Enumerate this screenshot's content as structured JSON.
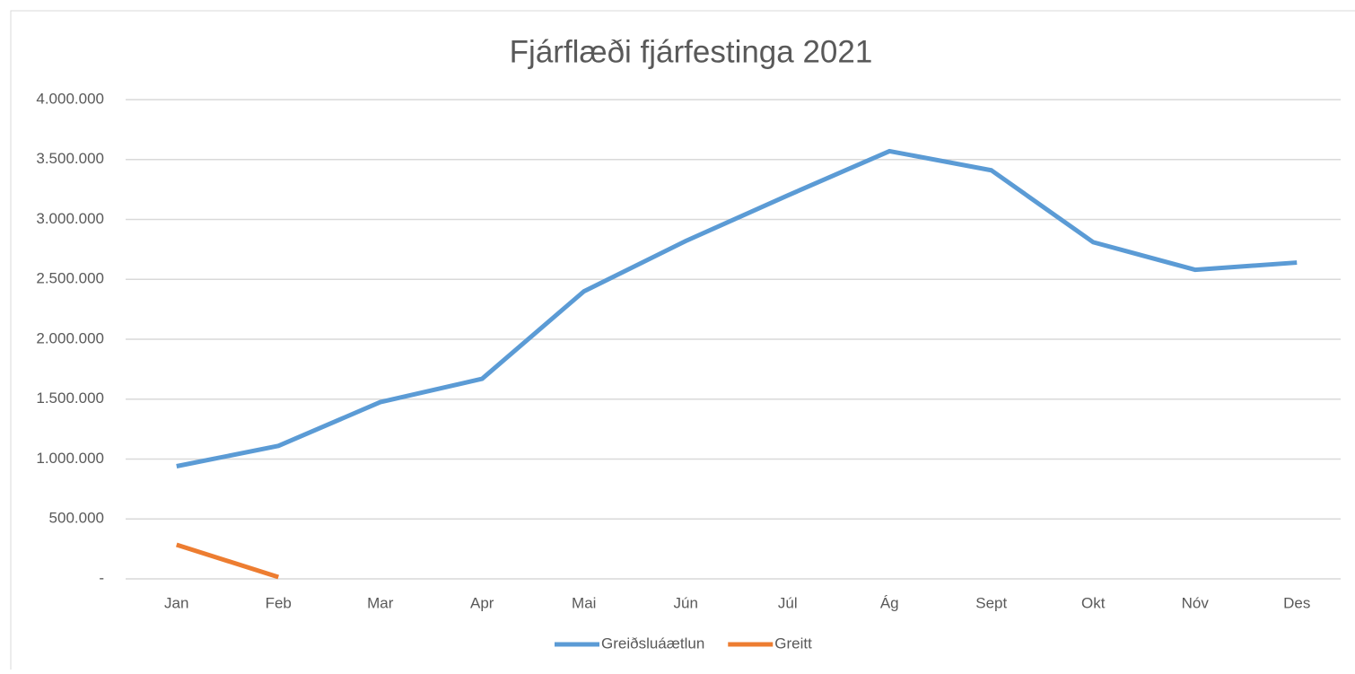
{
  "chart_data": {
    "type": "line",
    "title": "Fjárflæði fjárfestinga 2021",
    "categories": [
      "Jan",
      "Feb",
      "Mar",
      "Apr",
      "Mai",
      "Jún",
      "Júl",
      "Ág",
      "Sept",
      "Okt",
      "Nóv",
      "Des"
    ],
    "series": [
      {
        "name": "Greiðsluáætlun",
        "color": "#5b9bd5",
        "values": [
          940000,
          1110000,
          1475000,
          1670000,
          2400000,
          2820000,
          3200000,
          3570000,
          3410000,
          2810000,
          2580000,
          2640000
        ]
      },
      {
        "name": "Greitt",
        "color": "#ed7d31",
        "values": [
          285000,
          15000,
          null,
          null,
          null,
          null,
          null,
          null,
          null,
          null,
          null,
          null
        ]
      }
    ],
    "ylim": [
      0,
      4000000
    ],
    "yticks": [
      {
        "value": 0,
        "label": "-"
      },
      {
        "value": 500000,
        "label": "500.000"
      },
      {
        "value": 1000000,
        "label": "1.000.000"
      },
      {
        "value": 1500000,
        "label": "1.500.000"
      },
      {
        "value": 2000000,
        "label": "2.000.000"
      },
      {
        "value": 2500000,
        "label": "2.500.000"
      },
      {
        "value": 3000000,
        "label": "3.000.000"
      },
      {
        "value": 3500000,
        "label": "3.500.000"
      },
      {
        "value": 4000000,
        "label": "4.000.000"
      }
    ],
    "grid": true,
    "legend": "bottom"
  }
}
